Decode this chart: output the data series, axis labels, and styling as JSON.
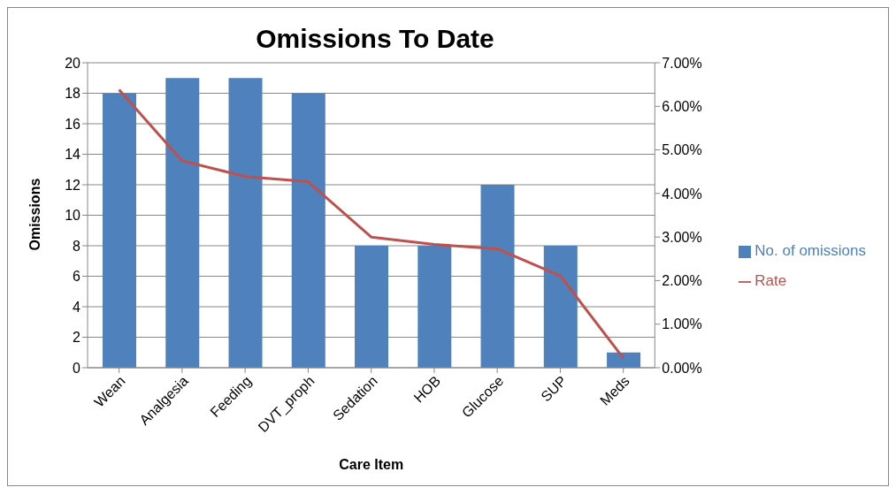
{
  "chart_data": {
    "type": "bar",
    "title": "Omissions To Date",
    "xlabel": "Care Item",
    "ylabel": "Omissions",
    "categories": [
      "Wean",
      "Analgesia",
      "Feeding",
      "DVT_proph",
      "Sedation",
      "HOB",
      "Glucose",
      "SUP",
      "Meds"
    ],
    "series": [
      {
        "name": "No. of omissions",
        "color": "#4f81bd",
        "values": [
          18,
          19,
          19,
          18,
          8,
          8,
          12,
          8,
          1
        ]
      },
      {
        "name": "Rate",
        "type": "line",
        "axis": "y2",
        "color": "#c0504d",
        "values": [
          6.38,
          4.75,
          4.39,
          4.27,
          3.0,
          2.83,
          2.73,
          2.11,
          0.22
        ]
      }
    ],
    "ylim": [
      0,
      20
    ],
    "yticks": [
      0,
      2,
      4,
      6,
      8,
      10,
      12,
      14,
      16,
      18,
      20
    ],
    "y2lim": [
      0,
      7
    ],
    "y2ticks": [
      {
        "value": 0,
        "label": "0.00%"
      },
      {
        "value": 1,
        "label": "1.00%"
      },
      {
        "value": 2,
        "label": "2.00%"
      },
      {
        "value": 3,
        "label": "3.00%"
      },
      {
        "value": 4,
        "label": "4.00%"
      },
      {
        "value": 5,
        "label": "5.00%"
      },
      {
        "value": 6,
        "label": "6.00%"
      },
      {
        "value": 7,
        "label": "7.00%"
      }
    ],
    "grid": "y",
    "legend": "right",
    "marker": "none"
  }
}
